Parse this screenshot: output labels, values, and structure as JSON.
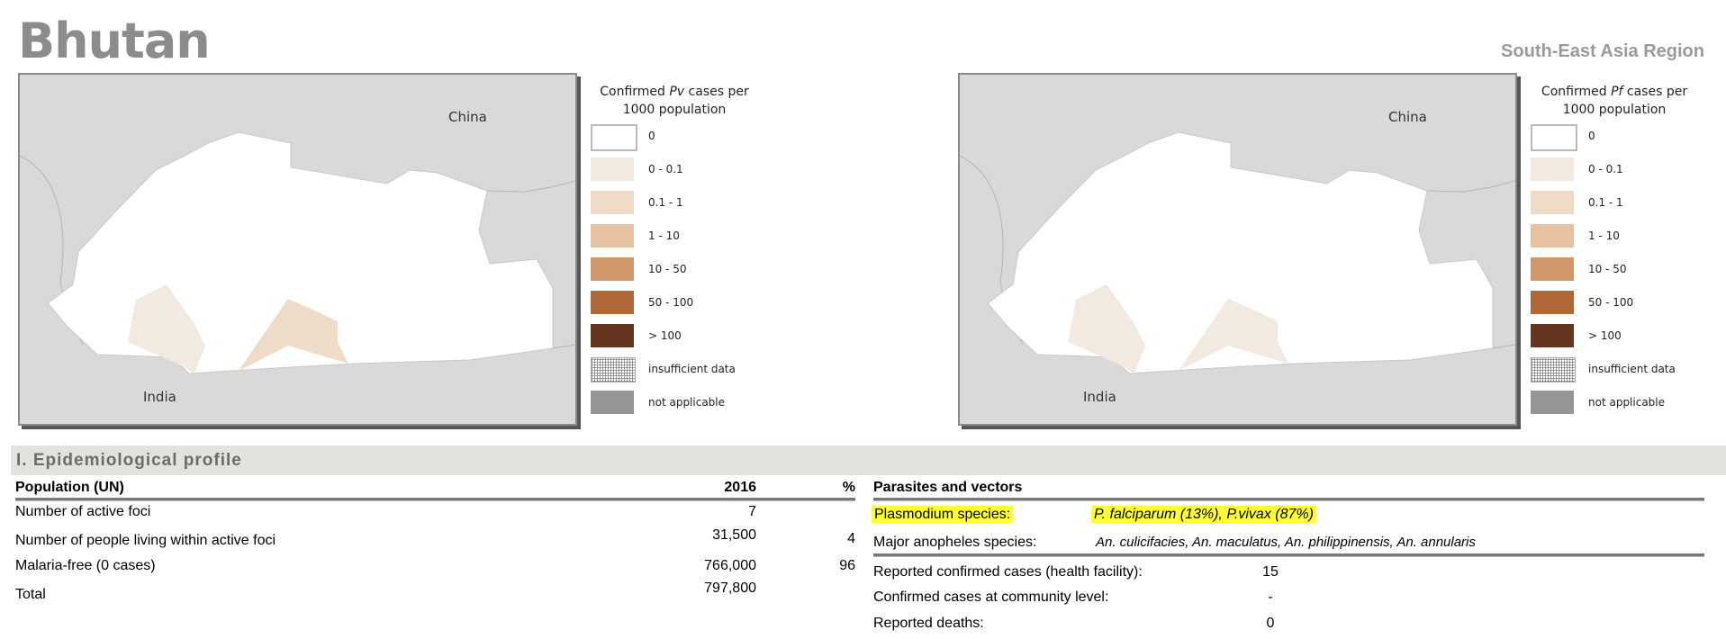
{
  "header": {
    "country": "Bhutan",
    "region": "South-East Asia Region"
  },
  "maps": [
    {
      "legend_title_pre": "Confirmed ",
      "legend_title_species": "Pv",
      "legend_title_post": " cases per",
      "legend_title_line2": "1000 population",
      "labels": {
        "north": "China",
        "south": "India"
      }
    },
    {
      "legend_title_pre": "Confirmed ",
      "legend_title_species": "Pf",
      "legend_title_post": " cases per",
      "legend_title_line2": "1000 population",
      "labels": {
        "north": "China",
        "south": "India"
      }
    }
  ],
  "legend": [
    {
      "label": "0",
      "color": "#ffffff"
    },
    {
      "label": "0 - 0.1",
      "color": "#f2e9e1"
    },
    {
      "label": "0.1 - 1",
      "color": "#efdcc8"
    },
    {
      "label": "1 - 10",
      "color": "#e6c2a0"
    },
    {
      "label": "10 - 50",
      "color": "#d0976a"
    },
    {
      "label": "50 - 100",
      "color": "#b06838"
    },
    {
      "label": "> 100",
      "color": "#653520"
    },
    {
      "label": "insufficient data",
      "color": "pattern"
    },
    {
      "label": "not applicable",
      "color": "#939596"
    }
  ],
  "section": {
    "title": "I. Epidemiological profile"
  },
  "population": {
    "header": {
      "label": "Population (UN)",
      "year": "2016",
      "pct": "%"
    },
    "rows": [
      {
        "label": "Number of active foci",
        "value": "7",
        "pct": ""
      },
      {
        "label": "Number of people living within active foci",
        "value": "31,500",
        "pct": "4"
      },
      {
        "label": "Malaria-free (0 cases)",
        "value": "766,000",
        "pct": "96"
      },
      {
        "label": "Total",
        "value": "797,800",
        "pct": ""
      }
    ]
  },
  "parasites": {
    "header": "Parasites and vectors",
    "plasmodium_label": "Plasmodium species:",
    "plasmodium_value": "P. falciparum (13%), P.vivax (87%)",
    "anopheles_label": "Major anopheles species:",
    "anopheles_value": "An. culicifacies, An. maculatus, An. philippinensis, An. annularis",
    "stats": [
      {
        "label": "Reported confirmed cases (health facility):",
        "value": "15"
      },
      {
        "label": "Confirmed cases at community level:",
        "value": "-"
      },
      {
        "label": "Reported deaths:",
        "value": "0"
      }
    ]
  }
}
